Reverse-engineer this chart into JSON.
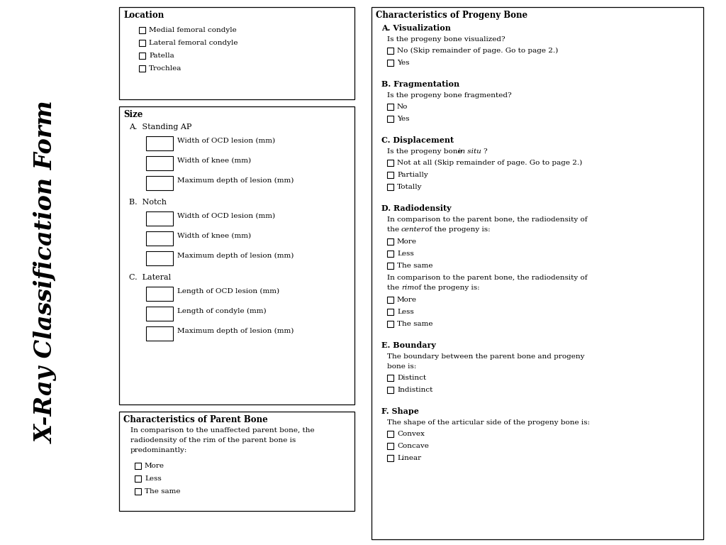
{
  "title": "X-Ray Classification Form",
  "fig_w": 10.24,
  "fig_h": 7.68,
  "dpi": 100,
  "bg": "#ffffff",
  "location": {
    "title": "Location",
    "items": [
      "Medial femoral condyle",
      "Lateral femoral condyle",
      "Patella",
      "Trochlea"
    ]
  },
  "size": {
    "title": "Size",
    "sections": [
      {
        "label": "A.  Standing AP",
        "fields": [
          "Width of OCD lesion (mm)",
          "Width of knee (mm)",
          "Maximum depth of lesion (mm)"
        ]
      },
      {
        "label": "B.  Notch",
        "fields": [
          "Width of OCD lesion (mm)",
          "Width of knee (mm)",
          "Maximum depth of lesion (mm)"
        ]
      },
      {
        "label": "C.  Lateral",
        "fields": [
          "Length of OCD lesion (mm)",
          "Length of condyle (mm)",
          "Maximum depth of lesion (mm)"
        ]
      }
    ]
  },
  "parent": {
    "title": "Characteristics of Parent Bone",
    "desc_lines": [
      "In comparison to the unaffected parent bone, the",
      "radiodensity of the rim of the parent bone is",
      "predominantly:"
    ],
    "items": [
      "More",
      "Less",
      "The same"
    ]
  },
  "progeny": {
    "title": "Characteristics of Progeny Bone",
    "sections": [
      {
        "type": "simple",
        "label": "A. Visualization",
        "desc_lines": [
          "Is the progeny bone visualized?"
        ],
        "items": [
          "No (Skip remainder of page. Go to page 2.)",
          "Yes"
        ]
      },
      {
        "type": "simple",
        "label": "B. Fragmentation",
        "desc_lines": [
          "Is the progeny bone fragmented?"
        ],
        "items": [
          "No",
          "Yes"
        ]
      },
      {
        "type": "italic_desc",
        "label": "C. Displacement",
        "desc_pre": "Is the progeny bone ",
        "desc_italic": "in situ",
        "desc_post": "?",
        "items": [
          "Not at all (Skip remainder of page. Go to page 2.)",
          "Partially",
          "Totally"
        ]
      },
      {
        "type": "radiodensity",
        "label": "D. Radiodensity",
        "desc1_line1": "In comparison to the parent bone, the radiodensity of",
        "desc1_line2_pre": "the ",
        "desc1_line2_italic": "center",
        "desc1_line2_post": " of the progeny is:",
        "items1": [
          "More",
          "Less",
          "The same"
        ],
        "desc2_line1": "In comparison to the parent bone, the radiodensity of",
        "desc2_line2_pre": "the ",
        "desc2_line2_italic": "rim",
        "desc2_line2_post": " of the progeny is:",
        "items2": [
          "More",
          "Less",
          "The same"
        ]
      },
      {
        "type": "simple",
        "label": "E. Boundary",
        "desc_lines": [
          "The boundary between the parent bone and progeny",
          "bone is:"
        ],
        "items": [
          "Distinct",
          "Indistinct"
        ]
      },
      {
        "type": "simple",
        "label": "F. Shape",
        "desc_lines": [
          "The shape of the articular side of the progeny bone is:"
        ],
        "items": [
          "Convex",
          "Concave",
          "Linear"
        ]
      }
    ]
  }
}
